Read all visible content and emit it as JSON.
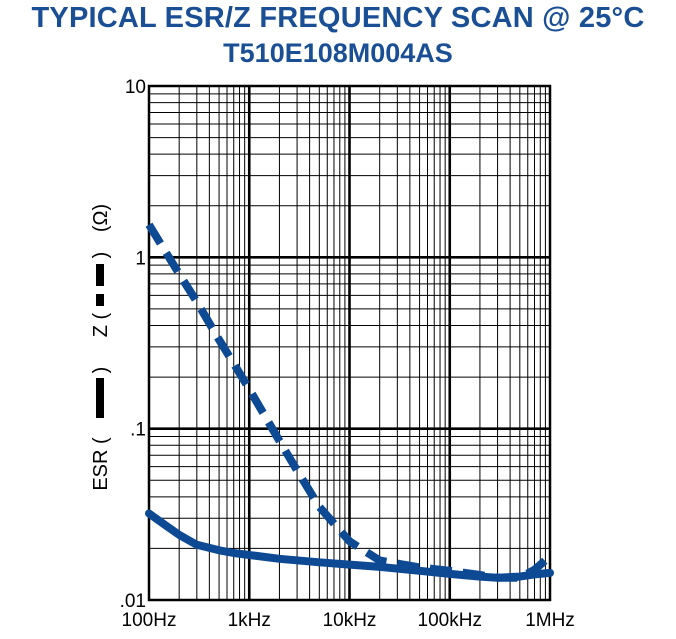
{
  "chart_data": {
    "type": "line",
    "title": "TYPICAL ESR/Z FREQUENCY SCAN @ 25°C",
    "subtitle": "T510E108M004AS",
    "xlabel": "",
    "ylabel_parts": [
      "ESR (",
      ")",
      "Z (",
      ")",
      "(Ω)"
    ],
    "x_scale": "log",
    "y_scale": "log",
    "xlim": [
      100,
      1000000
    ],
    "ylim": [
      0.01,
      10
    ],
    "x_ticks": [
      {
        "value": 100,
        "label": "100Hz"
      },
      {
        "value": 1000,
        "label": "1kHz"
      },
      {
        "value": 10000,
        "label": "10kHz"
      },
      {
        "value": 100000,
        "label": "100kHz"
      },
      {
        "value": 1000000,
        "label": "1MHz"
      }
    ],
    "y_ticks": [
      {
        "value": 0.01,
        "label": ".01"
      },
      {
        "value": 0.1,
        "label": ".1"
      },
      {
        "value": 1,
        "label": "1"
      },
      {
        "value": 10,
        "label": "10"
      }
    ],
    "grid": true,
    "series_color": "#0d4a93",
    "series": [
      {
        "style": "solid",
        "x": [
          100,
          150,
          200,
          300,
          500,
          700,
          1000,
          2000,
          5000,
          10000,
          20000,
          50000,
          100000,
          200000,
          300000,
          500000,
          700000,
          1000000
        ],
        "y": [
          0.032,
          0.027,
          0.024,
          0.021,
          0.0195,
          0.0188,
          0.0183,
          0.0174,
          0.0166,
          0.0161,
          0.0156,
          0.0148,
          0.0142,
          0.0137,
          0.0135,
          0.0137,
          0.0141,
          0.0144
        ]
      },
      {
        "style": "dashed",
        "x": [
          100,
          150,
          200,
          300,
          500,
          700,
          1000,
          2000,
          3000,
          5000,
          10000,
          20000,
          50000,
          100000,
          200000,
          300000,
          500000,
          700000,
          1000000
        ],
        "y": [
          1.55,
          1.05,
          0.8,
          0.55,
          0.33,
          0.24,
          0.17,
          0.085,
          0.057,
          0.035,
          0.022,
          0.017,
          0.0155,
          0.0148,
          0.014,
          0.0135,
          0.0135,
          0.015,
          0.018
        ]
      }
    ]
  }
}
